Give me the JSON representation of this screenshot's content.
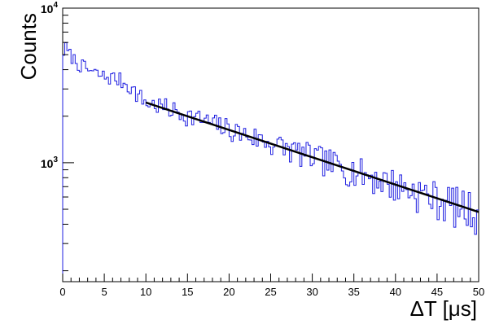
{
  "chart_data": {
    "type": "line",
    "title": "",
    "xlabel": "ΔT [μs]",
    "ylabel": "Counts",
    "xlim": [
      0,
      50
    ],
    "ylim": [
      170,
      10000
    ],
    "yscale": "log",
    "xticks": [
      "0",
      "5",
      "10",
      "15",
      "20",
      "25",
      "30",
      "35",
      "40",
      "45",
      "50"
    ],
    "yticks": [
      {
        "base": "10",
        "exp": "3",
        "value": 1000
      },
      {
        "base": "10",
        "exp": "4",
        "value": 10000
      }
    ],
    "grid": false,
    "legend": "none",
    "series": [
      {
        "kind": "histogram",
        "color": "#1f1fe0",
        "bin_width": 0.25,
        "points": [
          [
            0.0,
            4700
          ],
          [
            0.25,
            5800
          ],
          [
            0.5,
            5300
          ],
          [
            1.0,
            4900
          ],
          [
            2.0,
            4300
          ],
          [
            3.0,
            4000
          ],
          [
            4.0,
            3750
          ],
          [
            5.0,
            3600
          ],
          [
            6.0,
            3550
          ],
          [
            7.0,
            3400
          ],
          [
            8.0,
            3150
          ],
          [
            9.0,
            2750
          ],
          [
            10.0,
            2450
          ],
          [
            11.0,
            2380
          ],
          [
            12.0,
            2300
          ],
          [
            13.0,
            2200
          ],
          [
            14.0,
            2120
          ],
          [
            15.0,
            2030
          ],
          [
            16.0,
            1950
          ],
          [
            17.0,
            1870
          ],
          [
            18.0,
            1790
          ],
          [
            19.0,
            1720
          ],
          [
            20.0,
            1650
          ],
          [
            21.0,
            1580
          ],
          [
            22.0,
            1520
          ],
          [
            23.0,
            1460
          ],
          [
            24.0,
            1400
          ],
          [
            25.0,
            1340
          ],
          [
            26.0,
            1290
          ],
          [
            27.0,
            1235
          ],
          [
            28.0,
            1185
          ],
          [
            29.0,
            1140
          ],
          [
            30.0,
            1090
          ],
          [
            31.0,
            1050
          ],
          [
            32.0,
            1005
          ],
          [
            33.0,
            965
          ],
          [
            34.0,
            925
          ],
          [
            35.0,
            890
          ],
          [
            36.0,
            855
          ],
          [
            37.0,
            820
          ],
          [
            38.0,
            785
          ],
          [
            39.0,
            755
          ],
          [
            40.0,
            725
          ],
          [
            41.0,
            695
          ],
          [
            42.0,
            665
          ],
          [
            43.0,
            640
          ],
          [
            44.0,
            615
          ],
          [
            45.0,
            590
          ],
          [
            46.0,
            565
          ],
          [
            47.0,
            545
          ],
          [
            48.0,
            520
          ],
          [
            49.0,
            500
          ],
          [
            50.0,
            480
          ]
        ]
      },
      {
        "kind": "fit",
        "color": "#000000",
        "points": [
          [
            10.0,
            2450
          ],
          [
            50.0,
            480
          ]
        ]
      }
    ]
  }
}
